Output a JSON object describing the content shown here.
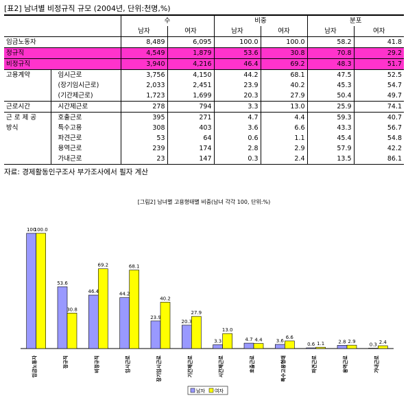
{
  "table": {
    "title": "[표2] 남녀별 비정규직 규모 (2004년, 단위:천명,%)",
    "groups": {
      "count": "수",
      "share": "비중",
      "dist": "분포"
    },
    "sub": {
      "male": "남자",
      "female": "여자"
    },
    "rows": [
      {
        "cat": "임금노동자",
        "label": "",
        "vals": [
          "8,489",
          "6,095",
          "100.0",
          "100.0",
          "58.2",
          "41.8"
        ]
      },
      {
        "cat": "정규직",
        "label": "",
        "vals": [
          "4,549",
          "1,879",
          "53.6",
          "30.8",
          "70.8",
          "29.2"
        ]
      },
      {
        "cat": "비정규직",
        "label": "",
        "vals": [
          "3,940",
          "4,216",
          "46.4",
          "69.2",
          "48.3",
          "51.7"
        ]
      },
      {
        "cat": "고용계약",
        "label": "임시근로",
        "vals": [
          "3,756",
          "4,150",
          "44.2",
          "68.1",
          "47.5",
          "52.5"
        ]
      },
      {
        "cat": "",
        "label": "(장기임시근로)",
        "vals": [
          "2,033",
          "2,451",
          "23.9",
          "40.2",
          "45.3",
          "54.7"
        ]
      },
      {
        "cat": "",
        "label": "(기간제근로)",
        "vals": [
          "1,723",
          "1,699",
          "20.3",
          "27.9",
          "50.4",
          "49.7"
        ]
      },
      {
        "cat": "근로시간",
        "label": "시간제근로",
        "vals": [
          "278",
          "794",
          "3.3",
          "13.0",
          "25.9",
          "74.1"
        ]
      },
      {
        "cat": "근 로 제 공",
        "label": "호출근로",
        "vals": [
          "395",
          "271",
          "4.7",
          "4.4",
          "59.3",
          "40.7"
        ]
      },
      {
        "cat": "방식",
        "label": "특수고용",
        "vals": [
          "308",
          "403",
          "3.6",
          "6.6",
          "43.3",
          "56.7"
        ]
      },
      {
        "cat": "",
        "label": "파견근로",
        "vals": [
          "53",
          "64",
          "0.6",
          "1.1",
          "45.4",
          "54.8"
        ]
      },
      {
        "cat": "",
        "label": "용역근로",
        "vals": [
          "239",
          "174",
          "2.8",
          "2.9",
          "57.9",
          "42.2"
        ]
      },
      {
        "cat": "",
        "label": "가내근로",
        "vals": [
          "23",
          "147",
          "0.3",
          "2.4",
          "13.5",
          "86.1"
        ]
      }
    ],
    "source": "자료: 경제활동인구조사 부가조사에서 필자 계산"
  },
  "colors": {
    "male": "#9999ff",
    "female": "#ffff00",
    "highlight": "#ff33cc"
  },
  "chart_data": {
    "type": "bar",
    "title": "[그림2] 남녀별 고용형태별 비중(남녀 각각 100, 단위:%)",
    "categories": [
      "임금노동자",
      "정규직",
      "비정규직",
      "임시근로",
      "장기임시근로",
      "기간제근로",
      "시간제근로",
      "호출근로",
      "특수고용형태",
      "파견근로",
      "용역근로",
      "가내근로"
    ],
    "series": [
      {
        "name": "남자",
        "values": [
          100.0,
          53.6,
          46.4,
          44.2,
          23.9,
          20.3,
          3.3,
          4.7,
          3.6,
          0.6,
          2.8,
          0.3
        ]
      },
      {
        "name": "여자",
        "values": [
          100.0,
          30.8,
          69.2,
          68.1,
          40.2,
          27.9,
          13.0,
          4.4,
          6.6,
          1.1,
          2.9,
          2.4
        ]
      }
    ],
    "labels_male": [
      "100",
      "53.6",
      "46.4",
      "44.2",
      "23.9",
      "20.3",
      "3.3",
      "4.7",
      "3.6",
      "0.6",
      "2.8",
      "0.3"
    ],
    "labels_female": [
      "100.0",
      "30.8",
      "69.2",
      "68.1",
      "40.2",
      "27.9",
      "13.0",
      "4.4",
      "6.6",
      "1.1",
      "2.9",
      "2.4"
    ],
    "ylim": [
      0,
      100
    ],
    "grid": false,
    "legend_position": "bottom"
  }
}
